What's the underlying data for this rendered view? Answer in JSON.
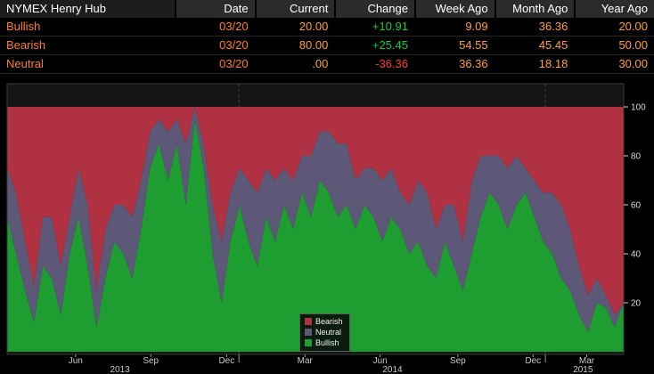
{
  "table": {
    "title": "NYMEX Henry Hub",
    "headers": [
      "Date",
      "Current",
      "Change",
      "Week Ago",
      "Month Ago",
      "Year Ago"
    ],
    "rows": [
      {
        "label": "Bullish",
        "date": "03/20",
        "current": "20.00",
        "change": "+10.91",
        "change_color": "#00d03c",
        "week_ago": "9.09",
        "month_ago": "36.36",
        "year_ago": "20.00"
      },
      {
        "label": "Bearish",
        "date": "03/20",
        "current": "80.00",
        "change": "+25.45",
        "change_color": "#00d03c",
        "week_ago": "54.55",
        "month_ago": "45.45",
        "year_ago": "50.00"
      },
      {
        "label": "Neutral",
        "date": "03/20",
        "current": ".00",
        "change": "-36.36",
        "change_color": "#ff3a3a",
        "week_ago": "36.36",
        "month_ago": "18.18",
        "year_ago": "30.00"
      }
    ]
  },
  "chart_data": {
    "type": "area",
    "stacked": true,
    "title": "",
    "ylim": [
      0,
      100
    ],
    "yticks": [
      20,
      40,
      60,
      80,
      100
    ],
    "grid": true,
    "series": [
      {
        "name": "Bullish",
        "color": "#1e9e30",
        "values": [
          55,
          40,
          25,
          12,
          35,
          30,
          15,
          40,
          55,
          35,
          10,
          30,
          45,
          40,
          30,
          50,
          75,
          85,
          70,
          85,
          60,
          95,
          75,
          40,
          20,
          45,
          60,
          45,
          35,
          55,
          45,
          60,
          50,
          65,
          55,
          70,
          65,
          55,
          60,
          50,
          60,
          55,
          45,
          55,
          50,
          40,
          45,
          35,
          30,
          45,
          35,
          25,
          40,
          55,
          65,
          60,
          50,
          60,
          65,
          55,
          45,
          40,
          30,
          25,
          15,
          8,
          20,
          18,
          10,
          20
        ]
      },
      {
        "name": "Neutral",
        "color": "#5d5878",
        "values": [
          20,
          25,
          20,
          15,
          20,
          25,
          20,
          15,
          20,
          25,
          15,
          20,
          15,
          20,
          25,
          20,
          15,
          10,
          20,
          10,
          25,
          5,
          10,
          20,
          25,
          20,
          15,
          25,
          30,
          20,
          25,
          15,
          20,
          15,
          25,
          20,
          25,
          30,
          25,
          20,
          15,
          20,
          25,
          20,
          15,
          20,
          25,
          30,
          20,
          15,
          25,
          20,
          30,
          25,
          15,
          20,
          25,
          20,
          10,
          15,
          20,
          25,
          30,
          25,
          20,
          15,
          10,
          5,
          5,
          0
        ]
      },
      {
        "name": "Bearish",
        "color": "#b03142",
        "values": [
          25,
          35,
          55,
          73,
          45,
          45,
          65,
          45,
          25,
          40,
          75,
          50,
          40,
          40,
          45,
          30,
          10,
          5,
          10,
          5,
          15,
          0,
          15,
          40,
          55,
          35,
          25,
          30,
          35,
          25,
          30,
          25,
          30,
          20,
          20,
          10,
          10,
          15,
          15,
          30,
          25,
          25,
          30,
          25,
          35,
          40,
          30,
          35,
          50,
          40,
          40,
          55,
          30,
          20,
          20,
          20,
          25,
          20,
          25,
          30,
          35,
          35,
          40,
          50,
          65,
          77,
          70,
          77,
          85,
          80
        ]
      }
    ],
    "legend": {
      "position": "bottom-center",
      "items": [
        {
          "label": "Bearish",
          "color": "#b03142"
        },
        {
          "label": "Neutral",
          "color": "#5d5878"
        },
        {
          "label": "Bullish",
          "color": "#1e9e30"
        }
      ]
    },
    "x_axis": {
      "month_ticks": [
        {
          "label": "Jun",
          "pos": 0.111
        },
        {
          "label": "Sep",
          "pos": 0.233
        },
        {
          "label": "Dec",
          "pos": 0.356
        },
        {
          "label": "Mar",
          "pos": 0.483
        },
        {
          "label": "Jun",
          "pos": 0.605
        },
        {
          "label": "Sep",
          "pos": 0.731
        },
        {
          "label": "Dec",
          "pos": 0.853
        },
        {
          "label": "Mar",
          "pos": 0.94
        }
      ],
      "year_labels": [
        {
          "label": "2013",
          "pos": 0.183
        },
        {
          "label": "2014",
          "pos": 0.625
        },
        {
          "label": "2015",
          "pos": 0.934
        }
      ],
      "year_boundaries": [
        0.376,
        0.873
      ]
    }
  },
  "colors": {
    "background": "#000000",
    "plot_background": "#141414",
    "header_cell": "#2b2b2b",
    "label_orange": "#ff7d1e",
    "value_amber": "#ffa028",
    "positive": "#00d03c",
    "negative": "#ff3a3a",
    "axis_text": "#d8d8d8"
  }
}
